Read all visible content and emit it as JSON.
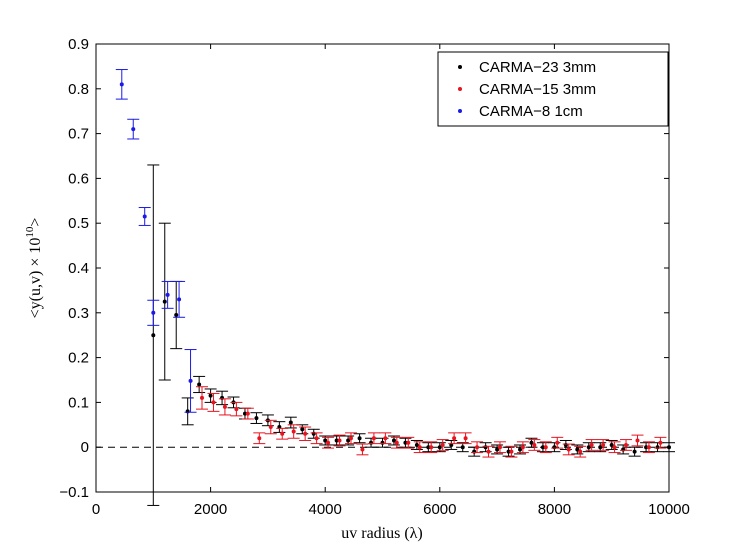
{
  "chart_data": {
    "type": "scatter",
    "title": "",
    "xlabel": "uv radius (λ)",
    "ylabel_prefix": "<y(u,v) × 10",
    "ylabel_exp": "10",
    "ylabel_suffix": ">",
    "xlim": [
      0,
      10000
    ],
    "ylim": [
      -0.1,
      0.9
    ],
    "x_ticks": [
      0,
      2000,
      4000,
      6000,
      8000,
      10000
    ],
    "x_tick_labels": [
      "0",
      "2000",
      "4000",
      "6000",
      "8000",
      "10000"
    ],
    "y_ticks": [
      -0.1,
      0,
      0.1,
      0.2,
      0.3,
      0.4,
      0.5,
      0.6,
      0.7,
      0.8,
      0.9
    ],
    "y_tick_labels": [
      "−0.1",
      "0",
      "0.1",
      "0.2",
      "0.3",
      "0.4",
      "0.5",
      "0.6",
      "0.7",
      "0.8",
      "0.9"
    ],
    "reference_line": {
      "y": 0,
      "style": "dashed"
    },
    "legend_position": "top-right",
    "series": [
      {
        "name": "CARMA−23 3mm",
        "color": "#000000",
        "x": [
          1000,
          1200,
          1400,
          1600,
          1800,
          2000,
          2200,
          2400,
          2600,
          2800,
          3000,
          3200,
          3400,
          3600,
          3800,
          4000,
          4200,
          4400,
          4600,
          4800,
          5000,
          5200,
          5400,
          5600,
          5800,
          6000,
          6200,
          6400,
          6600,
          6800,
          7000,
          7200,
          7400,
          7600,
          7800,
          8000,
          8200,
          8400,
          8600,
          8800,
          9000,
          9200,
          9400,
          9600,
          9800,
          10000
        ],
        "y": [
          0.25,
          0.325,
          0.295,
          0.08,
          0.14,
          0.115,
          0.11,
          0.1,
          0.075,
          0.065,
          0.06,
          0.045,
          0.055,
          0.04,
          0.03,
          0.015,
          0.015,
          0.015,
          0.02,
          0.01,
          0.01,
          0.015,
          0.01,
          0.005,
          0.0,
          0.0,
          0.005,
          0.0,
          -0.01,
          0.0,
          -0.005,
          -0.01,
          -0.005,
          0.01,
          0.0,
          0.0,
          0.005,
          -0.005,
          0.0,
          0.0,
          0.005,
          -0.005,
          -0.01,
          0.0,
          0.0,
          0.0
        ],
        "err": [
          0.38,
          0.175,
          0.075,
          0.03,
          0.018,
          0.015,
          0.015,
          0.012,
          0.012,
          0.012,
          0.012,
          0.012,
          0.012,
          0.01,
          0.01,
          0.01,
          0.01,
          0.01,
          0.01,
          0.01,
          0.01,
          0.01,
          0.01,
          0.01,
          0.01,
          0.01,
          0.01,
          0.01,
          0.01,
          0.01,
          0.01,
          0.01,
          0.01,
          0.01,
          0.01,
          0.01,
          0.01,
          0.01,
          0.01,
          0.01,
          0.01,
          0.01,
          0.01,
          0.01,
          0.01,
          0.01
        ]
      },
      {
        "name": "CARMA−15 3mm",
        "color": "#e8131f",
        "x": [
          1850,
          2050,
          2250,
          2450,
          2650,
          2850,
          3050,
          3250,
          3450,
          3650,
          3850,
          4050,
          4250,
          4450,
          4650,
          4850,
          5050,
          5250,
          5450,
          5650,
          5850,
          6050,
          6250,
          6450,
          6650,
          6850,
          7050,
          7250,
          7450,
          7650,
          7850,
          8050,
          8250,
          8450,
          8650,
          8850,
          9050,
          9250,
          9450,
          9650,
          9850
        ],
        "y": [
          0.11,
          0.1,
          0.09,
          0.085,
          0.075,
          0.02,
          0.045,
          0.03,
          0.035,
          0.03,
          0.02,
          0.01,
          0.015,
          0.02,
          -0.005,
          0.02,
          0.02,
          0.01,
          0.01,
          0.0,
          0.0,
          0.005,
          0.02,
          0.02,
          0.0,
          -0.01,
          0.0,
          -0.01,
          0.0,
          0.005,
          0.0,
          0.01,
          -0.005,
          -0.01,
          0.005,
          0.005,
          0.0,
          0.005,
          0.015,
          0.0,
          0.01
        ],
        "err": [
          0.025,
          0.02,
          0.018,
          0.015,
          0.012,
          0.012,
          0.015,
          0.012,
          0.015,
          0.015,
          0.012,
          0.012,
          0.012,
          0.012,
          0.012,
          0.012,
          0.012,
          0.012,
          0.012,
          0.012,
          0.012,
          0.012,
          0.012,
          0.012,
          0.012,
          0.012,
          0.012,
          0.012,
          0.012,
          0.012,
          0.012,
          0.012,
          0.012,
          0.012,
          0.012,
          0.012,
          0.012,
          0.012,
          0.012,
          0.012,
          0.012
        ]
      },
      {
        "name": "CARMA−8 1cm",
        "color": "#1a1ae8",
        "x": [
          450,
          650,
          850,
          1000,
          1250,
          1450,
          1650
        ],
        "y": [
          0.81,
          0.71,
          0.515,
          0.3,
          0.34,
          0.33,
          0.148
        ],
        "err": [
          0.033,
          0.022,
          0.02,
          0.028,
          0.03,
          0.04,
          0.07
        ]
      }
    ]
  }
}
